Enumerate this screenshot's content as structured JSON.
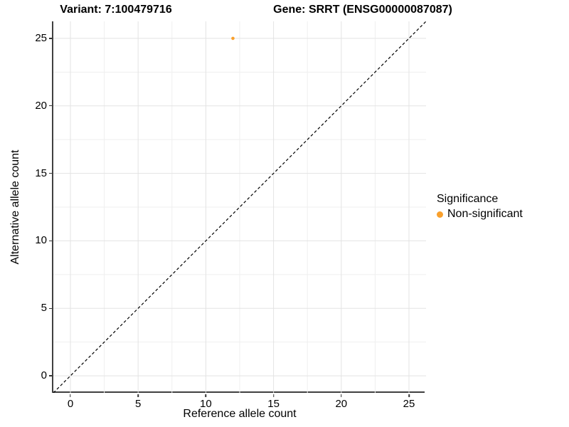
{
  "header": {
    "variant_title": "Variant: 7:100479716",
    "gene_title": "Gene: SRRT (ENSG00000087087)"
  },
  "legend": {
    "title": "Significance",
    "items": [
      {
        "label": "Non-significant",
        "color": "#F9A02C"
      }
    ]
  },
  "colors": {
    "point_orange": "#F9A02C",
    "grid_major": "#E3E3E3",
    "grid_minor": "#EFEFEF",
    "axis_line": "#404040",
    "tick_mark": "#333333",
    "dashed_line": "#000000",
    "background": "#FFFFFF",
    "text": "#000000"
  },
  "chart_data": {
    "type": "scatter",
    "title": "Variant: 7:100479716 | Gene: SRRT (ENSG00000087087)",
    "xlabel": "Reference allele count",
    "ylabel": "Alternative allele count",
    "xlim": [
      -1.26,
      26.26
    ],
    "ylim": [
      -1.26,
      26.26
    ],
    "x_ticks": [
      0,
      5,
      10,
      15,
      20,
      25
    ],
    "y_ticks": [
      0,
      5,
      10,
      15,
      20,
      25
    ],
    "grid": true,
    "grid_minor": true,
    "legend_position": "right",
    "series": [
      {
        "name": "Non-significant",
        "color": "#F9A02C",
        "points": [
          {
            "x": 12,
            "y": 25
          }
        ]
      }
    ],
    "reference_line": {
      "kind": "identity",
      "equation": "y = x",
      "style": "dashed",
      "color": "#000000"
    }
  }
}
